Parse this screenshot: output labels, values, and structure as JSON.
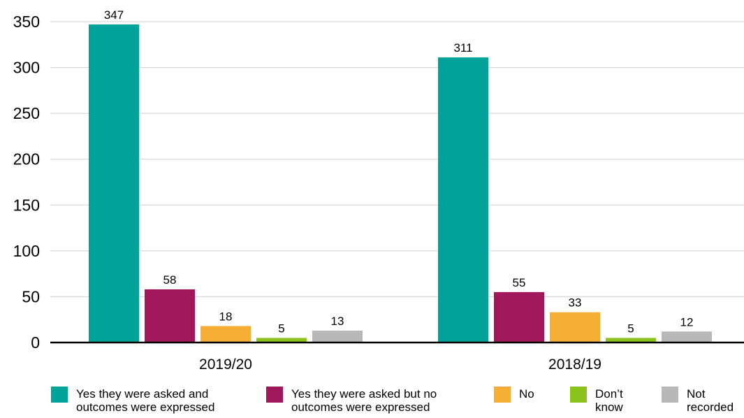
{
  "chart_data": {
    "type": "bar",
    "categories": [
      "2019/20",
      "2018/19"
    ],
    "series": [
      {
        "name": "Yes they were asked and\noutcomes were expressed",
        "color": "#00a39a",
        "values": [
          347,
          311
        ]
      },
      {
        "name": "Yes they were asked but no\noutcomes were expressed",
        "color": "#a0185a",
        "values": [
          58,
          55
        ]
      },
      {
        "name": "No",
        "color": "#f6ae35",
        "values": [
          18,
          33
        ]
      },
      {
        "name": "Don’t\nknow",
        "color": "#8cc21c",
        "values": [
          5,
          5
        ]
      },
      {
        "name": "Not\nrecorded",
        "color": "#b8b8b8",
        "values": [
          13,
          12
        ]
      }
    ],
    "ylim": [
      0,
      350
    ],
    "yticks": [
      0,
      50,
      100,
      150,
      200,
      250,
      300,
      350
    ],
    "grid": true,
    "legend_position": "bottom"
  }
}
